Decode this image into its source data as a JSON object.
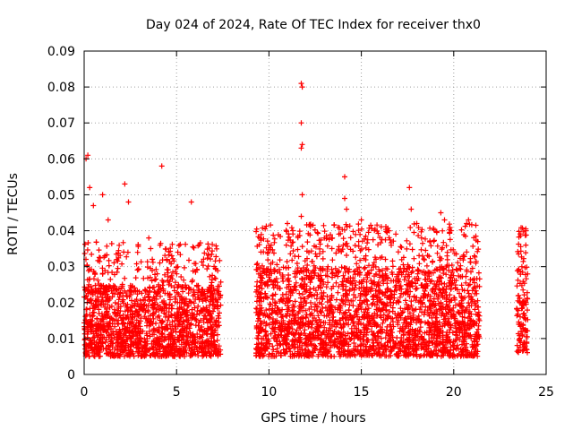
{
  "chart_data": {
    "type": "scatter",
    "title": "Day 024 of 2024, Rate Of TEC Index for receiver thx0",
    "xlabel": "GPS time / hours",
    "ylabel": "ROTI / TECUs",
    "xlim": [
      0,
      25
    ],
    "ylim": [
      0,
      0.09
    ],
    "xticks": [
      0,
      5,
      10,
      15,
      20,
      25
    ],
    "xtick_labels": [
      "0",
      "5",
      "10",
      "15",
      "20",
      "25"
    ],
    "yticks": [
      0,
      0.01,
      0.02,
      0.03,
      0.04,
      0.05,
      0.06,
      0.07,
      0.08,
      0.09
    ],
    "ytick_labels": [
      "0",
      "0.01",
      "0.02",
      "0.03",
      "0.04",
      "0.05",
      "0.06",
      "0.07",
      "0.08",
      "0.09"
    ],
    "grid": true,
    "marker": "+",
    "marker_color": "#ff0000",
    "series": [
      {
        "name": "thx0 ROTI",
        "coverage_segments": [
          {
            "x_start": 0.0,
            "x_end": 7.4,
            "typical_range": [
              0.005,
              0.025
            ]
          },
          {
            "x_start": 9.3,
            "x_end": 21.4,
            "typical_range": [
              0.005,
              0.03
            ]
          },
          {
            "x_start": 23.4,
            "x_end": 24.0,
            "typical_range": [
              0.006,
              0.03
            ]
          }
        ],
        "notable_points": [
          {
            "x": 0.1,
            "y": 0.06
          },
          {
            "x": 0.2,
            "y": 0.061
          },
          {
            "x": 0.3,
            "y": 0.052
          },
          {
            "x": 0.5,
            "y": 0.047
          },
          {
            "x": 1.0,
            "y": 0.05
          },
          {
            "x": 1.3,
            "y": 0.043
          },
          {
            "x": 2.2,
            "y": 0.053
          },
          {
            "x": 2.4,
            "y": 0.048
          },
          {
            "x": 3.5,
            "y": 0.038
          },
          {
            "x": 4.2,
            "y": 0.058
          },
          {
            "x": 5.8,
            "y": 0.048
          },
          {
            "x": 9.5,
            "y": 0.038
          },
          {
            "x": 11.0,
            "y": 0.042
          },
          {
            "x": 11.75,
            "y": 0.081
          },
          {
            "x": 11.8,
            "y": 0.08
          },
          {
            "x": 11.75,
            "y": 0.07
          },
          {
            "x": 11.8,
            "y": 0.064
          },
          {
            "x": 11.75,
            "y": 0.063
          },
          {
            "x": 11.8,
            "y": 0.05
          },
          {
            "x": 11.75,
            "y": 0.044
          },
          {
            "x": 13.0,
            "y": 0.038
          },
          {
            "x": 14.1,
            "y": 0.055
          },
          {
            "x": 14.1,
            "y": 0.049
          },
          {
            "x": 14.2,
            "y": 0.046
          },
          {
            "x": 15.0,
            "y": 0.043
          },
          {
            "x": 16.5,
            "y": 0.04
          },
          {
            "x": 17.6,
            "y": 0.052
          },
          {
            "x": 17.7,
            "y": 0.046
          },
          {
            "x": 18.0,
            "y": 0.042
          },
          {
            "x": 19.3,
            "y": 0.045
          },
          {
            "x": 19.5,
            "y": 0.043
          },
          {
            "x": 20.7,
            "y": 0.042
          },
          {
            "x": 20.8,
            "y": 0.043
          },
          {
            "x": 21.3,
            "y": 0.037
          },
          {
            "x": 23.9,
            "y": 0.04
          },
          {
            "x": 23.9,
            "y": 0.036
          }
        ]
      }
    ]
  }
}
